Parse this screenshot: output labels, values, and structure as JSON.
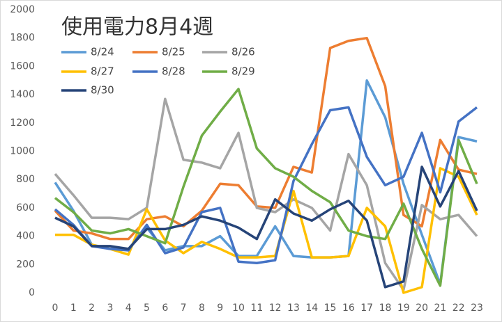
{
  "chart_data": {
    "type": "line",
    "title": "使用電力8月4週",
    "categories": [
      "0",
      "1",
      "2",
      "3",
      "4",
      "5",
      "6",
      "7",
      "8",
      "9",
      "10",
      "11",
      "12",
      "13",
      "14",
      "15",
      "16",
      "17",
      "18",
      "19",
      "20",
      "21",
      "22",
      "23"
    ],
    "ylim": [
      0,
      2000
    ],
    "yticks": [
      0,
      200,
      400,
      600,
      800,
      1000,
      1200,
      1400,
      1600,
      1800,
      2000
    ],
    "grid": false,
    "legend": "top-left",
    "series": [
      {
        "name": "8/24",
        "color": "#5B9BD5",
        "values": [
          780,
          580,
          340,
          310,
          310,
          460,
          300,
          330,
          330,
          400,
          260,
          260,
          470,
          260,
          250,
          250,
          260,
          1500,
          1240,
          770,
          410,
          60,
          1100,
          1070
        ]
      },
      {
        "name": "8/25",
        "color": "#ED7D31",
        "values": [
          580,
          440,
          420,
          380,
          380,
          520,
          540,
          470,
          580,
          770,
          760,
          610,
          600,
          890,
          850,
          1730,
          1780,
          1800,
          1460,
          550,
          470,
          1080,
          870,
          840
        ]
      },
      {
        "name": "8/26",
        "color": "#A5A5A5",
        "values": [
          840,
          690,
          530,
          530,
          520,
          600,
          1370,
          940,
          920,
          880,
          1130,
          600,
          570,
          660,
          600,
          440,
          980,
          760,
          210,
          20,
          620,
          520,
          550,
          400
        ]
      },
      {
        "name": "8/27",
        "color": "#FFC000",
        "values": [
          410,
          410,
          340,
          310,
          270,
          590,
          370,
          280,
          360,
          310,
          250,
          250,
          260,
          720,
          250,
          250,
          260,
          600,
          470,
          0,
          40,
          880,
          820,
          550
        ]
      },
      {
        "name": "8/28",
        "color": "#4472C4",
        "values": [
          590,
          480,
          330,
          310,
          300,
          480,
          280,
          320,
          570,
          600,
          220,
          210,
          230,
          790,
          1050,
          1290,
          1310,
          960,
          760,
          820,
          1130,
          710,
          1210,
          1310
        ]
      },
      {
        "name": "8/29",
        "color": "#70AD47",
        "values": [
          670,
          570,
          440,
          420,
          450,
          400,
          350,
          750,
          1110,
          1280,
          1440,
          1020,
          880,
          820,
          720,
          640,
          440,
          400,
          380,
          630,
          310,
          50,
          1080,
          770
        ]
      },
      {
        "name": "8/30",
        "color": "#264478",
        "values": [
          530,
          470,
          330,
          330,
          310,
          450,
          450,
          480,
          540,
          510,
          460,
          380,
          660,
          560,
          510,
          590,
          650,
          510,
          40,
          80,
          890,
          610,
          860,
          580
        ]
      }
    ]
  }
}
